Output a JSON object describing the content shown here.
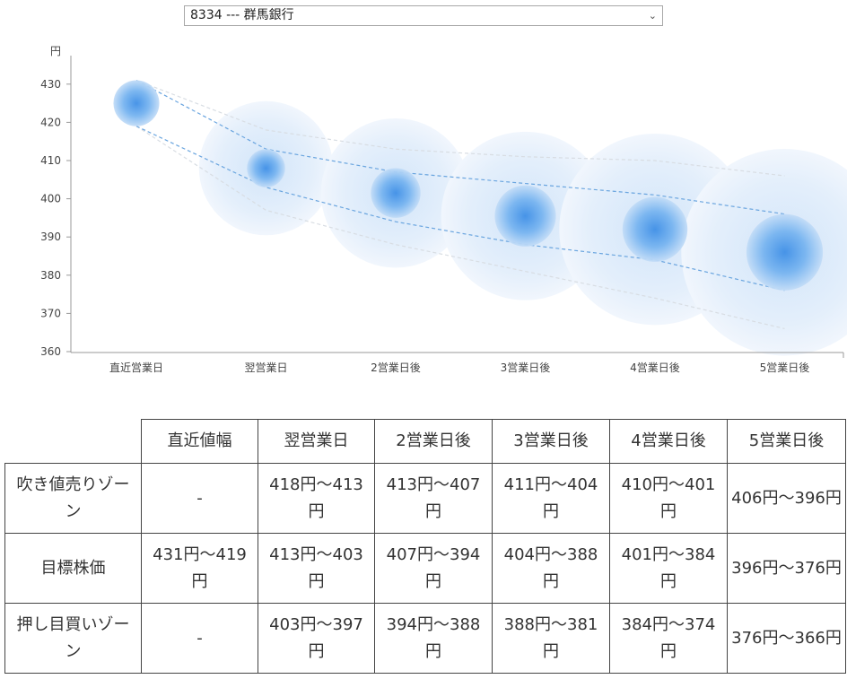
{
  "selector": {
    "value": "8334 --- 群馬銀行"
  },
  "chart_data": {
    "type": "scatter",
    "y_unit": "円",
    "ylim": [
      360,
      435
    ],
    "yticks": [
      360,
      370,
      380,
      390,
      400,
      410,
      420,
      430
    ],
    "categories": [
      "直近営業日",
      "翌営業日",
      "2営業日後",
      "3営業日後",
      "4営業日後",
      "5営業日後"
    ],
    "center": [
      425,
      408,
      401.5,
      395.5,
      392,
      386
    ],
    "target_band": {
      "upper": [
        431,
        413,
        407,
        404,
        401,
        396
      ],
      "lower": [
        419,
        403,
        394,
        388,
        384,
        376
      ]
    },
    "outer_band": {
      "upper": [
        431,
        418,
        413,
        411,
        410,
        406
      ],
      "lower": [
        419,
        397,
        388,
        381,
        374,
        366
      ]
    },
    "grid": false
  },
  "table": {
    "headers": [
      "",
      "直近値幅",
      "翌営業日",
      "2営業日後",
      "3営業日後",
      "4営業日後",
      "5営業日後"
    ],
    "rows": [
      {
        "label": "吹き値売りゾーン",
        "cells": [
          "-",
          "418円～413円",
          "413円～407円",
          "411円～404円",
          "410円～401円",
          "406円～396円"
        ]
      },
      {
        "label": "目標株価",
        "cells": [
          "431円～419円",
          "413円～403円",
          "407円～394円",
          "404円～388円",
          "401円～384円",
          "396円～376円"
        ]
      },
      {
        "label": "押し目買いゾーン",
        "cells": [
          "-",
          "403円～397円",
          "394円～388円",
          "388円～381円",
          "384円～374円",
          "376円～366円"
        ]
      }
    ]
  }
}
